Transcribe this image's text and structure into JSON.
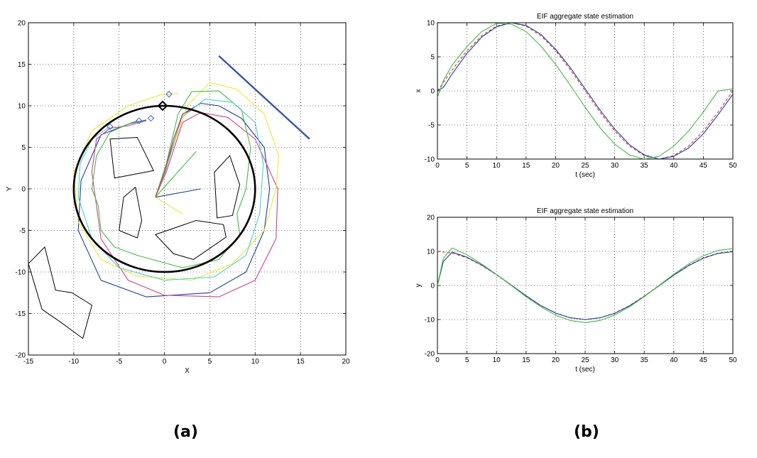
{
  "captions": {
    "a": "(a)",
    "b": "(b)"
  },
  "chart_data": [
    {
      "type": "line",
      "panel": "a",
      "title": "",
      "xlabel": "X",
      "ylabel": "Y",
      "xlim": [
        -15,
        20
      ],
      "ylim": [
        -20,
        20
      ],
      "xticks": [
        -15,
        -10,
        -5,
        0,
        5,
        10,
        15,
        20
      ],
      "yticks": [
        -20,
        -15,
        -10,
        -5,
        0,
        5,
        10,
        15,
        20
      ],
      "grid": true,
      "circle": {
        "center": [
          0,
          0
        ],
        "radius": 10,
        "color": "#000000"
      },
      "target_marker": {
        "x": -0.2,
        "y": 10,
        "shape": "diamond",
        "color": "#000000"
      },
      "agent_markers": {
        "shape": "diamond",
        "color": "#3366cc",
        "points": [
          [
            0.5,
            11.4
          ],
          [
            -1.5,
            8.5
          ],
          [
            -2.8,
            8.2
          ],
          [
            -6,
            7.5
          ]
        ]
      },
      "line_segment": {
        "points": [
          [
            6,
            16
          ],
          [
            16,
            6
          ]
        ],
        "color": "#3355aa"
      },
      "obstacles": [
        [
          [
            -6,
            6
          ],
          [
            -3,
            6.2
          ],
          [
            -1.2,
            2.2
          ],
          [
            -5.5,
            1.3
          ]
        ],
        [
          [
            -4.5,
            -1
          ],
          [
            -3.2,
            0.2
          ],
          [
            -2.5,
            -3.8
          ],
          [
            -3,
            -5.9
          ],
          [
            -5,
            -5
          ]
        ],
        [
          [
            -1,
            -5.5
          ],
          [
            3.5,
            -3.8
          ],
          [
            6.5,
            -4.3
          ],
          [
            6.8,
            -5.8
          ],
          [
            3.2,
            -8.5
          ],
          [
            1,
            -7.8
          ]
        ],
        [
          [
            5.5,
            2
          ],
          [
            7.2,
            4
          ],
          [
            8.3,
            0.5
          ],
          [
            7.5,
            -3.2
          ],
          [
            5.8,
            -3.5
          ]
        ],
        [
          [
            -15,
            -9
          ],
          [
            -13.2,
            -7
          ],
          [
            -12,
            -12.2
          ],
          [
            -10.2,
            -12.5
          ],
          [
            -8,
            -14
          ],
          [
            -9,
            -18
          ],
          [
            -11.5,
            -16
          ],
          [
            -13.5,
            -14.5
          ]
        ]
      ],
      "series": [
        {
          "color": "#1f3fa0",
          "points": [
            [
              -1,
              -1
            ],
            [
              4,
              0
            ]
          ]
        },
        {
          "color": "#1f3fa0",
          "points": [
            [
              -1,
              -1
            ],
            [
              0,
              2
            ],
            [
              2,
              9
            ],
            [
              4,
              10.3
            ],
            [
              6,
              10
            ],
            [
              8.5,
              8.5
            ],
            [
              11,
              5
            ],
            [
              11.6,
              0
            ],
            [
              11,
              -5
            ],
            [
              9,
              -10
            ],
            [
              5,
              -12.5
            ],
            [
              -2,
              -13
            ],
            [
              -7,
              -11
            ],
            [
              -9.5,
              -5
            ],
            [
              -9.2,
              1
            ],
            [
              -7,
              6.5
            ],
            [
              -4,
              7.8
            ],
            [
              -2,
              8.3
            ]
          ]
        },
        {
          "color": "#cc4488",
          "points": [
            [
              -1,
              -1
            ],
            [
              0.2,
              2
            ],
            [
              2,
              8
            ],
            [
              4,
              9.2
            ],
            [
              7,
              8.6
            ],
            [
              10,
              6
            ],
            [
              12.5,
              0
            ],
            [
              12.3,
              -6
            ],
            [
              10,
              -11
            ],
            [
              6,
              -13
            ],
            [
              0,
              -12.8
            ],
            [
              -4,
              -11
            ],
            [
              -7,
              -6
            ],
            [
              -7.5,
              -2
            ],
            [
              -8,
              2
            ],
            [
              -7.5,
              6
            ],
            [
              -6,
              7.3
            ],
            [
              -4,
              7.6
            ],
            [
              -2,
              8.2
            ]
          ]
        },
        {
          "color": "#e8e83a",
          "points": [
            [
              -1,
              -1
            ],
            [
              2,
              -3
            ]
          ]
        },
        {
          "color": "#e8e83a",
          "points": [
            [
              -1,
              -1
            ],
            [
              0,
              2
            ],
            [
              2.5,
              10
            ],
            [
              5,
              12.8
            ],
            [
              8,
              12
            ],
            [
              11,
              9
            ],
            [
              12.6,
              4
            ],
            [
              12.3,
              0
            ],
            [
              11,
              -5
            ],
            [
              7.5,
              -9
            ],
            [
              3,
              -11
            ],
            [
              -3,
              -10.5
            ],
            [
              -7,
              -8.5
            ],
            [
              -9.5,
              -4
            ],
            [
              -10,
              2
            ],
            [
              -8,
              7
            ],
            [
              -4,
              10
            ],
            [
              -0.5,
              11.3
            ],
            [
              1.5,
              11.5
            ]
          ]
        },
        {
          "color": "#44bb44",
          "points": [
            [
              -1,
              -1
            ],
            [
              3.5,
              4.5
            ]
          ]
        },
        {
          "color": "#44bb44",
          "points": [
            [
              -1,
              -1
            ],
            [
              0.2,
              3
            ],
            [
              1.5,
              9
            ],
            [
              3,
              11.7
            ],
            [
              6,
              11.8
            ],
            [
              8.5,
              9.5
            ],
            [
              9.5,
              5
            ],
            [
              9,
              0
            ],
            [
              8,
              -3
            ],
            [
              8.3,
              -5.5
            ],
            [
              6,
              -8.5
            ],
            [
              2,
              -9.5
            ],
            [
              -3,
              -8
            ],
            [
              -5.5,
              -7
            ],
            [
              -7,
              -5
            ],
            [
              -7.3,
              -2
            ],
            [
              -8,
              0
            ],
            [
              -7.5,
              4
            ],
            [
              -6,
              6.8
            ],
            [
              -4,
              7.8
            ],
            [
              -3,
              8.2
            ]
          ]
        },
        {
          "color": "#55cccc",
          "points": [
            [
              -1,
              -1
            ],
            [
              0.1,
              2
            ],
            [
              1.8,
              8.5
            ],
            [
              4.5,
              10.8
            ],
            [
              7.5,
              10.4
            ],
            [
              10,
              8
            ],
            [
              10.9,
              3
            ],
            [
              10.5,
              -3
            ],
            [
              9,
              -8
            ],
            [
              5.5,
              -10.6
            ],
            [
              0,
              -11
            ],
            [
              -5,
              -9.5
            ],
            [
              -8,
              -6
            ],
            [
              -9.5,
              -1
            ],
            [
              -9.3,
              3
            ],
            [
              -8,
              6
            ],
            [
              -6,
              7.5
            ]
          ]
        },
        {
          "color": "#dd3333",
          "points": [
            [
              -1,
              -1
            ],
            [
              0,
              2
            ],
            [
              1,
              6
            ],
            [
              2,
              9
            ],
            [
              3,
              9.5
            ]
          ]
        }
      ]
    },
    {
      "type": "line",
      "panel": "b-top",
      "title": "EIF aggregate state estimation",
      "xlabel": "t (sec)",
      "ylabel": "x",
      "xlim": [
        0,
        50
      ],
      "ylim": [
        -10,
        10
      ],
      "xticks": [
        0,
        5,
        10,
        15,
        20,
        25,
        30,
        35,
        40,
        45,
        50
      ],
      "yticks": [
        -10,
        -5,
        0,
        5,
        10
      ],
      "grid": true,
      "series": [
        {
          "color": "#dd3333",
          "dash": "4,3",
          "x": [
            0,
            2.5,
            5,
            7.5,
            10,
            12.5,
            15,
            17.5,
            20,
            22.5,
            25,
            27.5,
            30,
            32.5,
            35,
            37.5,
            40,
            42.5,
            45,
            47.5,
            50
          ],
          "y": [
            0,
            3.1,
            5.9,
            8.1,
            9.5,
            10,
            9.5,
            8.1,
            5.9,
            3.1,
            0,
            -3.1,
            -5.9,
            -8.1,
            -9.5,
            -10,
            -9.5,
            -8.1,
            -5.9,
            -3.1,
            0
          ]
        },
        {
          "color": "#1f3fa0",
          "x": [
            0,
            1,
            2.5,
            5,
            7.5,
            10,
            12.5,
            15,
            17.5,
            20,
            22.5,
            25,
            27.5,
            30,
            32.5,
            35,
            37.5,
            40,
            42.5,
            45,
            47.5,
            50
          ],
          "y": [
            0,
            0.5,
            2.5,
            5.5,
            7.9,
            9.4,
            10,
            9.6,
            8.3,
            6.1,
            3.4,
            0.3,
            -2.8,
            -5.6,
            -7.9,
            -9.4,
            -10,
            -9.6,
            -8.4,
            -6.3,
            -3.5,
            -0.5
          ]
        },
        {
          "color": "#44bb44",
          "x": [
            0,
            1,
            2.5,
            5,
            7.5,
            10,
            12.5,
            15,
            17.5,
            20,
            22.5,
            25,
            27.5,
            30,
            32.5,
            35,
            37.5,
            40,
            42.5,
            45,
            47.5,
            50
          ],
          "y": [
            -1,
            1.5,
            3.8,
            6.5,
            8.7,
            9.9,
            9.8,
            8.7,
            6.6,
            3.9,
            0.8,
            -2.4,
            -5.4,
            -7.8,
            -9.4,
            -10,
            -9.6,
            -8.1,
            -5.9,
            -3.1,
            0,
            0.3
          ]
        }
      ]
    },
    {
      "type": "line",
      "panel": "b-bottom",
      "title": "EIF aggregate state estimation",
      "xlabel": "t (sec)",
      "ylabel": "y",
      "xlim": [
        0,
        50
      ],
      "ylim": [
        -20,
        20
      ],
      "xticks": [
        0,
        5,
        10,
        15,
        20,
        25,
        30,
        35,
        40,
        45,
        50
      ],
      "yticks": [
        -20,
        -10,
        0,
        10,
        20
      ],
      "grid": true,
      "series": [
        {
          "color": "#dd3333",
          "dash": "4,3",
          "x": [
            0,
            2.5,
            5,
            7.5,
            10,
            12.5,
            15,
            17.5,
            20,
            22.5,
            25,
            27.5,
            30,
            32.5,
            35,
            37.5,
            40,
            42.5,
            45,
            47.5,
            50
          ],
          "y": [
            10,
            9.5,
            8.1,
            5.9,
            3.1,
            0,
            -3.1,
            -5.9,
            -8.1,
            -9.5,
            -10,
            -9.5,
            -8.1,
            -5.9,
            -3.1,
            0,
            3.1,
            5.9,
            8.1,
            9.5,
            10
          ]
        },
        {
          "color": "#1f3fa0",
          "x": [
            0,
            1,
            2.5,
            5,
            7.5,
            10,
            12.5,
            15,
            17.5,
            20,
            22.5,
            25,
            27.5,
            30,
            32.5,
            35,
            37.5,
            40,
            42.5,
            45,
            47.5,
            50
          ],
          "y": [
            0,
            7,
            9.8,
            8.3,
            6,
            3.2,
            0.1,
            -3,
            -5.9,
            -8.1,
            -9.5,
            -10,
            -9.5,
            -8.2,
            -6,
            -3.2,
            -0.1,
            3,
            5.8,
            8,
            9.4,
            9.9
          ]
        },
        {
          "color": "#44bb44",
          "x": [
            0,
            1,
            2.5,
            5,
            7.5,
            10,
            12.5,
            15,
            17.5,
            20,
            22.5,
            25,
            27.5,
            30,
            32.5,
            35,
            37.5,
            40,
            42.5,
            45,
            47.5,
            50
          ],
          "y": [
            0,
            8,
            11,
            9,
            6.3,
            3.2,
            0,
            -3.3,
            -6.3,
            -8.7,
            -10.3,
            -10.9,
            -10.3,
            -8.7,
            -6.3,
            -3.3,
            0,
            3.3,
            6.3,
            8.7,
            10.3,
            10.8
          ]
        }
      ]
    }
  ]
}
